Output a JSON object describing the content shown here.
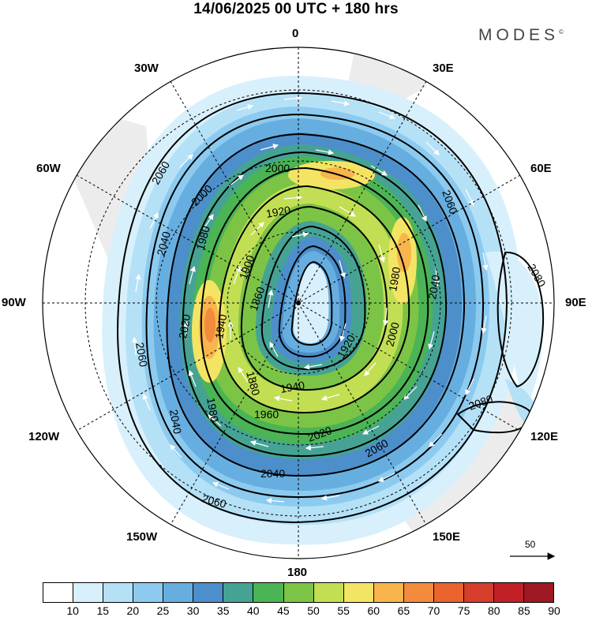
{
  "title": "14/06/2025  00 UTC  + 180 hrs",
  "brand": {
    "name": "MODES",
    "mark": "©"
  },
  "map": {
    "projection": "south-polar-stereographic",
    "longitude_labels": {
      "top": "0",
      "bottom": "180",
      "left": "90W",
      "right": "90E",
      "w30": "30W",
      "e30": "30E",
      "w60": "60W",
      "e60": "60E",
      "w120": "120W",
      "e120": "120E",
      "w150": "150W",
      "e150": "150E"
    },
    "contour_labels": [
      "1860",
      "1880",
      "1900",
      "1920",
      "1940",
      "1960",
      "1980",
      "2000",
      "2020",
      "2040",
      "2060",
      "2080"
    ],
    "reference_vector": {
      "value": "50"
    }
  },
  "colorbar": {
    "colors": [
      "#ffffff",
      "#d8f0fb",
      "#b5e1f7",
      "#8ccbef",
      "#67aee0",
      "#4c8fcb",
      "#46a394",
      "#4bb454",
      "#7cc446",
      "#c2df54",
      "#f4e463",
      "#f7b54c",
      "#f28c3c",
      "#e9642e",
      "#d63d2a",
      "#c12027",
      "#9d1822"
    ],
    "ticks": [
      "10",
      "15",
      "20",
      "25",
      "30",
      "35",
      "40",
      "45",
      "50",
      "55",
      "60",
      "65",
      "70",
      "75",
      "80",
      "85",
      "90"
    ]
  }
}
